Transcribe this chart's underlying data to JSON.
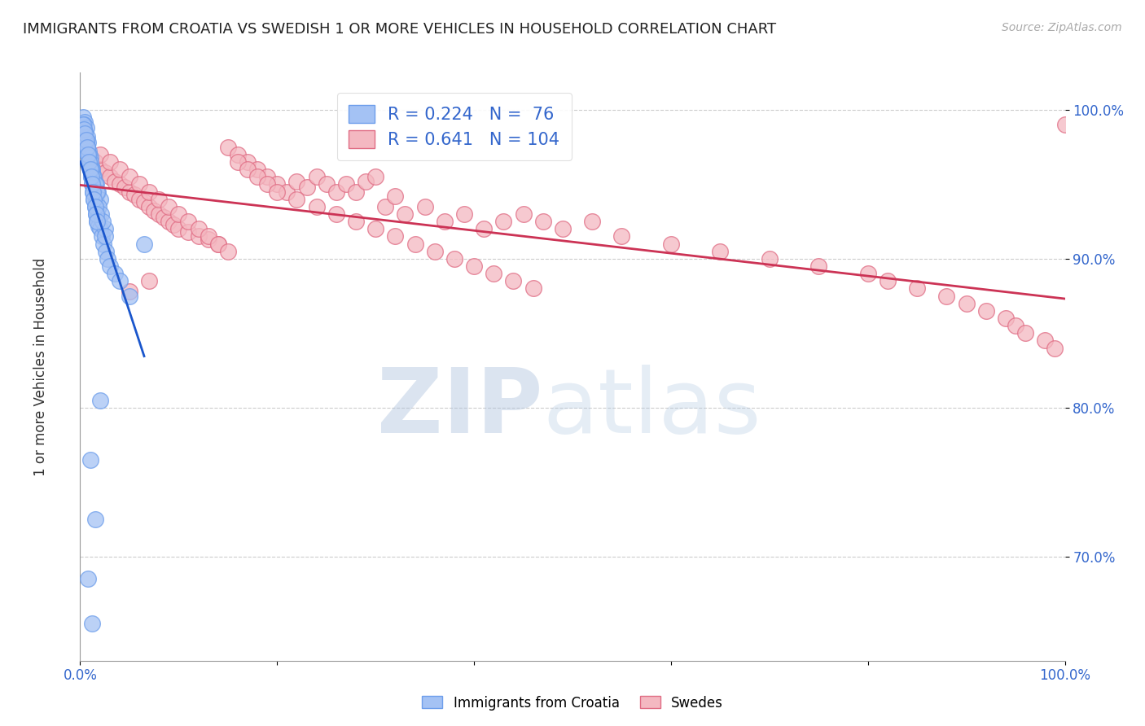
{
  "title": "IMMIGRANTS FROM CROATIA VS SWEDISH 1 OR MORE VEHICLES IN HOUSEHOLD CORRELATION CHART",
  "source": "Source: ZipAtlas.com",
  "ylabel": "1 or more Vehicles in Household",
  "xlim": [
    0.0,
    100.0
  ],
  "ylim": [
    63.0,
    102.5
  ],
  "yticks": [
    70.0,
    80.0,
    90.0,
    100.0
  ],
  "ytick_labels": [
    "70.0%",
    "80.0%",
    "90.0%",
    "100.0%"
  ],
  "xtick_labels": [
    "0.0%",
    "",
    "",
    "",
    "",
    "100.0%"
  ],
  "legend_R1": "0.224",
  "legend_N1": "76",
  "legend_R2": "0.641",
  "legend_N2": "104",
  "series1_label": "Immigrants from Croatia",
  "series2_label": "Swedes",
  "series1_color": "#a4c2f4",
  "series2_color": "#f4b8c1",
  "series1_edge_color": "#6d9eeb",
  "series2_edge_color": "#e06c84",
  "series1_line_color": "#1a56cc",
  "series2_line_color": "#cc3355",
  "watermark_zip": "ZIP",
  "watermark_atlas": "atlas",
  "blue_x": [
    0.3,
    0.5,
    0.4,
    0.6,
    0.5,
    0.7,
    0.6,
    0.8,
    0.7,
    0.9,
    0.8,
    1.0,
    0.9,
    1.1,
    1.0,
    1.2,
    1.1,
    1.3,
    1.2,
    1.4,
    1.3,
    1.5,
    1.4,
    1.6,
    1.5,
    1.7,
    1.6,
    1.8,
    1.7,
    1.9,
    2.0,
    2.2,
    2.4,
    2.6,
    2.8,
    3.0,
    3.5,
    4.0,
    5.0,
    6.5,
    0.4,
    0.6,
    0.8,
    1.0,
    1.2,
    1.4,
    1.6,
    1.8,
    2.0,
    2.5,
    0.5,
    0.7,
    0.9,
    1.1,
    1.3,
    1.5,
    1.7,
    1.9,
    2.1,
    2.3,
    0.3,
    0.4,
    0.5,
    0.6,
    0.7,
    0.8,
    0.9,
    1.0,
    1.1,
    1.2,
    1.3,
    1.4,
    1.5,
    1.6,
    1.7,
    2.0
  ],
  "blue_y": [
    99.5,
    99.2,
    99.0,
    98.8,
    98.5,
    98.2,
    98.0,
    97.8,
    97.5,
    97.2,
    97.0,
    96.8,
    96.5,
    96.2,
    96.0,
    95.8,
    95.5,
    95.2,
    95.0,
    94.8,
    94.5,
    94.2,
    94.0,
    93.8,
    93.5,
    93.2,
    93.0,
    92.8,
    92.5,
    92.2,
    92.0,
    91.5,
    91.0,
    90.5,
    90.0,
    89.5,
    89.0,
    88.5,
    87.5,
    91.0,
    98.5,
    97.8,
    97.0,
    96.5,
    96.0,
    95.5,
    95.0,
    94.5,
    94.0,
    92.0,
    98.0,
    97.5,
    97.0,
    96.0,
    95.5,
    95.0,
    94.5,
    93.5,
    93.0,
    92.5,
    99.0,
    98.7,
    98.4,
    98.0,
    97.5,
    97.0,
    96.5,
    96.0,
    95.5,
    95.0,
    94.5,
    94.0,
    93.5,
    93.0,
    92.5,
    80.5
  ],
  "blue_isolated_x": [
    2.5,
    1.0,
    1.5,
    0.8,
    1.2
  ],
  "blue_isolated_y": [
    91.5,
    76.5,
    72.5,
    68.5,
    65.5
  ],
  "pink_x": [
    1.5,
    2.0,
    2.5,
    3.0,
    3.5,
    4.0,
    4.5,
    5.0,
    5.5,
    6.0,
    6.5,
    7.0,
    7.5,
    8.0,
    8.5,
    9.0,
    9.5,
    10.0,
    11.0,
    12.0,
    13.0,
    14.0,
    15.0,
    16.0,
    17.0,
    18.0,
    19.0,
    20.0,
    21.0,
    22.0,
    23.0,
    24.0,
    25.0,
    26.0,
    27.0,
    28.0,
    29.0,
    30.0,
    31.0,
    32.0,
    33.0,
    35.0,
    37.0,
    39.0,
    41.0,
    43.0,
    45.0,
    47.0,
    49.0,
    52.0,
    55.0,
    60.0,
    65.0,
    70.0,
    75.0,
    80.0,
    82.0,
    85.0,
    88.0,
    90.0,
    92.0,
    94.0,
    95.0,
    96.0,
    98.0,
    99.0,
    100.0,
    2.0,
    3.0,
    4.0,
    5.0,
    6.0,
    7.0,
    8.0,
    9.0,
    10.0,
    11.0,
    12.0,
    13.0,
    14.0,
    15.0,
    16.0,
    17.0,
    18.0,
    19.0,
    20.0,
    22.0,
    24.0,
    26.0,
    28.0,
    30.0,
    32.0,
    34.0,
    36.0,
    38.0,
    40.0,
    42.0,
    44.0,
    46.0,
    5.0,
    7.0
  ],
  "pink_y": [
    96.5,
    96.0,
    95.8,
    95.5,
    95.2,
    95.0,
    94.8,
    94.5,
    94.3,
    94.0,
    93.8,
    93.5,
    93.2,
    93.0,
    92.8,
    92.5,
    92.3,
    92.0,
    91.8,
    91.5,
    91.3,
    91.0,
    97.5,
    97.0,
    96.5,
    96.0,
    95.5,
    95.0,
    94.5,
    95.2,
    94.8,
    95.5,
    95.0,
    94.5,
    95.0,
    94.5,
    95.2,
    95.5,
    93.5,
    94.2,
    93.0,
    93.5,
    92.5,
    93.0,
    92.0,
    92.5,
    93.0,
    92.5,
    92.0,
    92.5,
    91.5,
    91.0,
    90.5,
    90.0,
    89.5,
    89.0,
    88.5,
    88.0,
    87.5,
    87.0,
    86.5,
    86.0,
    85.5,
    85.0,
    84.5,
    84.0,
    99.0,
    97.0,
    96.5,
    96.0,
    95.5,
    95.0,
    94.5,
    94.0,
    93.5,
    93.0,
    92.5,
    92.0,
    91.5,
    91.0,
    90.5,
    96.5,
    96.0,
    95.5,
    95.0,
    94.5,
    94.0,
    93.5,
    93.0,
    92.5,
    92.0,
    91.5,
    91.0,
    90.5,
    90.0,
    89.5,
    89.0,
    88.5,
    88.0,
    87.8,
    88.5
  ]
}
